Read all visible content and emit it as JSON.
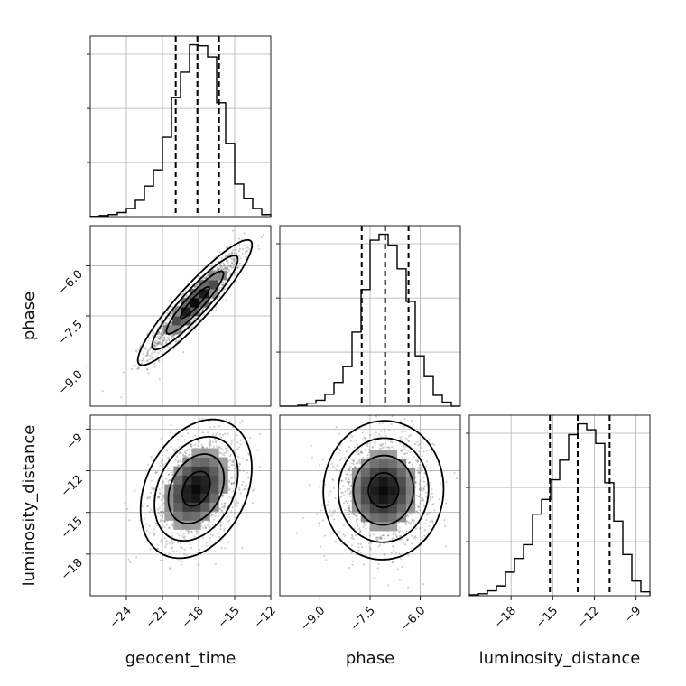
{
  "chart_data": {
    "type": "corner",
    "grid": true,
    "parameters": [
      "geocent_time",
      "phase",
      "luminosity_distance"
    ],
    "axis_labels": {
      "geocent_time": "geocent_time",
      "phase": "phase",
      "luminosity_distance": "luminosity_distance"
    },
    "ranges": {
      "geocent_time": [
        -27,
        -12
      ],
      "phase": [
        -10.2,
        -4.8
      ],
      "luminosity_distance": [
        -21,
        -8
      ]
    },
    "ticks": {
      "geocent_time": [
        -24,
        -21,
        -18,
        -15,
        -12
      ],
      "phase": [
        -9.0,
        -7.5,
        -6.0
      ],
      "luminosity_distance": [
        -18,
        -15,
        -12,
        -9
      ]
    },
    "tick_labels": {
      "geocent_time": [
        "−24",
        "−21",
        "−18",
        "−15",
        "−12"
      ],
      "phase": [
        "−9.0",
        "−7.5",
        "−6.0"
      ],
      "luminosity_distance": [
        "−18",
        "−15",
        "−12",
        "−9"
      ]
    },
    "quantiles": {
      "geocent_time": [
        -19.9,
        -18.1,
        -16.3
      ],
      "phase": [
        -7.75,
        -7.05,
        -6.35
      ],
      "luminosity_distance": [
        -15.2,
        -13.2,
        -10.9
      ]
    },
    "histograms": [
      {
        "param": "geocent_time",
        "bin_edges": [
          -27,
          -26.25,
          -25.5,
          -24.75,
          -24,
          -23.25,
          -22.5,
          -21.75,
          -21,
          -20.25,
          -19.5,
          -18.75,
          -18,
          -17.25,
          -16.5,
          -15.75,
          -15,
          -14.25,
          -13.5,
          -12.75,
          -12
        ],
        "counts": [
          0.3,
          1,
          2,
          4,
          8,
          16,
          30,
          46,
          78,
          117,
          142,
          169,
          168,
          157,
          112,
          72,
          32,
          18,
          8,
          2
        ]
      },
      {
        "param": "phase",
        "bin_edges": [
          -10.2,
          -9.93,
          -9.66,
          -9.39,
          -9.12,
          -8.85,
          -8.58,
          -8.31,
          -8.04,
          -7.77,
          -7.5,
          -7.23,
          -6.96,
          -6.69,
          -6.42,
          -6.15,
          -5.88,
          -5.61,
          -5.34,
          -5.07,
          -4.8
        ],
        "counts": [
          0,
          0,
          1,
          3,
          6,
          12,
          24,
          40,
          75,
          118,
          168,
          174,
          163,
          139,
          106,
          51,
          30,
          11,
          4,
          0
        ]
      },
      {
        "param": "luminosity_distance",
        "bin_edges": [
          -21,
          -20.35,
          -19.7,
          -19.05,
          -18.4,
          -17.75,
          -17.1,
          -16.45,
          -15.8,
          -15.15,
          -14.5,
          -13.85,
          -13.2,
          -12.55,
          -11.9,
          -11.25,
          -10.6,
          -9.95,
          -9.3,
          -8.65,
          -8
        ],
        "counts": [
          1,
          2,
          5,
          10,
          24,
          38,
          52,
          83,
          98,
          118,
          138,
          164,
          175,
          169,
          155,
          115,
          76,
          42,
          15,
          4
        ]
      }
    ],
    "pairs": [
      {
        "x": "geocent_time",
        "y": "phase",
        "mean": [
          -18.3,
          -7.1
        ],
        "sd": [
          1.9,
          0.75
        ],
        "corr": 0.92
      },
      {
        "x": "geocent_time",
        "y": "luminosity_distance",
        "mean": [
          -18.2,
          -13.3
        ],
        "sd": [
          1.85,
          2.0
        ],
        "corr": 0.3
      },
      {
        "x": "phase",
        "y": "luminosity_distance",
        "mean": [
          -7.1,
          -13.4
        ],
        "sd": [
          0.72,
          2.0
        ],
        "corr": 0.02
      }
    ],
    "contour_levels_sigma": [
      0.5,
      1.0,
      1.5,
      2.0
    ]
  }
}
